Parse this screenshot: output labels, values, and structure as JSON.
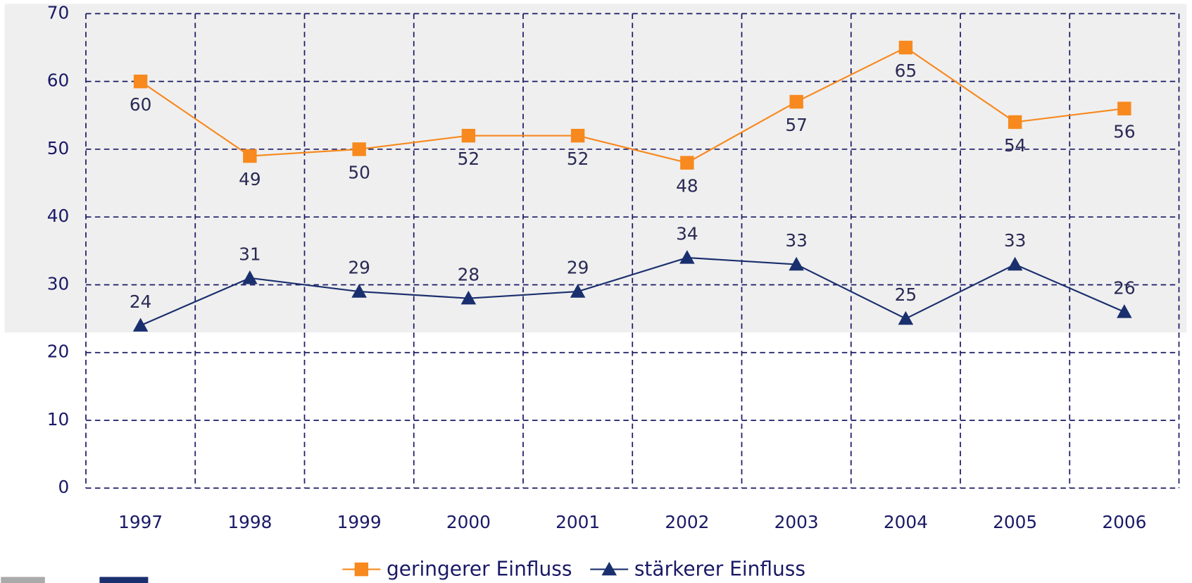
{
  "chart_data": {
    "type": "line",
    "categories": [
      "1997",
      "1998",
      "1999",
      "2000",
      "2001",
      "2002",
      "2003",
      "2004",
      "2005",
      "2006"
    ],
    "series": [
      {
        "name": "geringerer Einfluss",
        "color": "#f7891e",
        "marker": "square",
        "values": [
          60,
          49,
          50,
          52,
          52,
          48,
          57,
          65,
          54,
          56
        ]
      },
      {
        "name": "stärkerer Einfluss",
        "color": "#1a2f6e",
        "marker": "triangle",
        "values": [
          24,
          31,
          29,
          28,
          29,
          34,
          33,
          25,
          33,
          26
        ]
      }
    ],
    "ylim": [
      0,
      70
    ],
    "yticks": [
      0,
      10,
      20,
      30,
      40,
      50,
      60,
      70
    ],
    "grid": true,
    "legend": "bottom"
  }
}
